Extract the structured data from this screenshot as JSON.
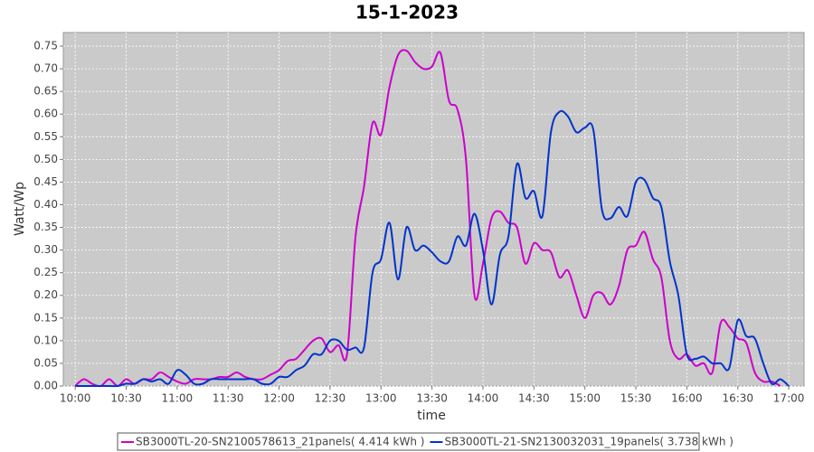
{
  "chart_data": {
    "type": "line",
    "title": "15-1-2023",
    "x_label": "time",
    "y_label": "Watt/Wp",
    "x": [
      "10:00",
      "10:05",
      "10:10",
      "10:15",
      "10:20",
      "10:25",
      "10:30",
      "10:35",
      "10:40",
      "10:45",
      "10:50",
      "10:55",
      "11:00",
      "11:05",
      "11:10",
      "11:15",
      "11:20",
      "11:25",
      "11:30",
      "11:35",
      "11:40",
      "11:45",
      "11:50",
      "11:55",
      "12:00",
      "12:05",
      "12:10",
      "12:15",
      "12:20",
      "12:25",
      "12:30",
      "12:35",
      "12:40",
      "12:45",
      "12:50",
      "12:55",
      "13:00",
      "13:05",
      "13:10",
      "13:15",
      "13:20",
      "13:25",
      "13:30",
      "13:35",
      "13:40",
      "13:45",
      "13:50",
      "13:55",
      "14:00",
      "14:05",
      "14:10",
      "14:15",
      "14:20",
      "14:25",
      "14:30",
      "14:35",
      "14:40",
      "14:45",
      "14:50",
      "14:55",
      "15:00",
      "15:05",
      "15:10",
      "15:15",
      "15:20",
      "15:25",
      "15:30",
      "15:35",
      "15:40",
      "15:45",
      "15:50",
      "15:55",
      "16:00",
      "16:05",
      "16:10",
      "16:15",
      "16:20",
      "16:25",
      "16:30",
      "16:35",
      "16:40",
      "16:45",
      "16:50",
      "16:55",
      "17:00"
    ],
    "series": [
      {
        "name": "SB3000TL-20-SN2100578613_21panels( 4.414 kWh )",
        "color": "#cc00cc",
        "values": [
          0,
          0.015,
          0.005,
          0,
          0.015,
          0,
          0.015,
          0.005,
          0.015,
          0.015,
          0.03,
          0.02,
          0.01,
          0.005,
          0.015,
          0.015,
          0.015,
          0.02,
          0.02,
          0.03,
          0.02,
          0.015,
          0.015,
          0.025,
          0.035,
          0.055,
          0.06,
          0.08,
          0.1,
          0.105,
          0.075,
          0.09,
          0.07,
          0.33,
          0.44,
          0.58,
          0.555,
          0.66,
          0.73,
          0.74,
          0.715,
          0.7,
          0.705,
          0.735,
          0.63,
          0.61,
          0.5,
          0.2,
          0.27,
          0.37,
          0.385,
          0.36,
          0.35,
          0.27,
          0.315,
          0.3,
          0.295,
          0.24,
          0.255,
          0.2,
          0.15,
          0.2,
          0.205,
          0.18,
          0.22,
          0.3,
          0.31,
          0.34,
          0.28,
          0.24,
          0.1,
          0.06,
          0.07,
          0.045,
          0.05,
          0.03,
          0.14,
          0.13,
          0.105,
          0.095,
          0.03,
          0.01,
          0.01,
          0,
          null
        ]
      },
      {
        "name": "SB3000TL-21-SN2130032031_19panels( 3.738 kWh )",
        "color": "#0033cc",
        "values": [
          0,
          0,
          0,
          0,
          0,
          0,
          0.005,
          0.005,
          0.015,
          0.01,
          0.015,
          0.005,
          0.035,
          0.025,
          0.005,
          0.005,
          0.015,
          0.015,
          0.015,
          0.015,
          0.015,
          0.015,
          0.005,
          0.005,
          0.02,
          0.02,
          0.035,
          0.045,
          0.07,
          0.07,
          0.1,
          0.1,
          0.08,
          0.085,
          0.085,
          0.25,
          0.28,
          0.36,
          0.235,
          0.35,
          0.3,
          0.31,
          0.295,
          0.275,
          0.275,
          0.33,
          0.31,
          0.38,
          0.3,
          0.18,
          0.29,
          0.33,
          0.49,
          0.415,
          0.43,
          0.375,
          0.56,
          0.605,
          0.595,
          0.56,
          0.57,
          0.565,
          0.39,
          0.37,
          0.395,
          0.375,
          0.45,
          0.455,
          0.415,
          0.395,
          0.275,
          0.2,
          0.07,
          0.06,
          0.065,
          0.05,
          0.05,
          0.04,
          0.145,
          0.11,
          0.105,
          0.05,
          0.005,
          0.015,
          0
        ]
      }
    ],
    "xlim": [
      "09:53",
      "17:09"
    ],
    "xticks": [
      "10:00",
      "10:30",
      "11:00",
      "11:30",
      "12:00",
      "12:30",
      "13:00",
      "13:30",
      "14:00",
      "14:30",
      "15:00",
      "15:30",
      "16:00",
      "16:30",
      "17:00"
    ],
    "ylim": [
      0,
      0.78
    ],
    "yticks": [
      {
        "value": 0,
        "label": "0.00"
      },
      0.05,
      {
        "value": 0.1,
        "label": "0.10"
      },
      0.15,
      {
        "value": 0.2,
        "label": "0.20"
      },
      0.25,
      {
        "value": 0.3,
        "label": "0.30"
      },
      0.35,
      {
        "value": 0.4,
        "label": "0.40"
      },
      0.45,
      {
        "value": 0.5,
        "label": "0.50"
      },
      0.55,
      {
        "value": 0.6,
        "label": "0.60"
      },
      0.65,
      {
        "value": 0.7,
        "label": "0.70"
      },
      0.75
    ],
    "grid": true
  }
}
